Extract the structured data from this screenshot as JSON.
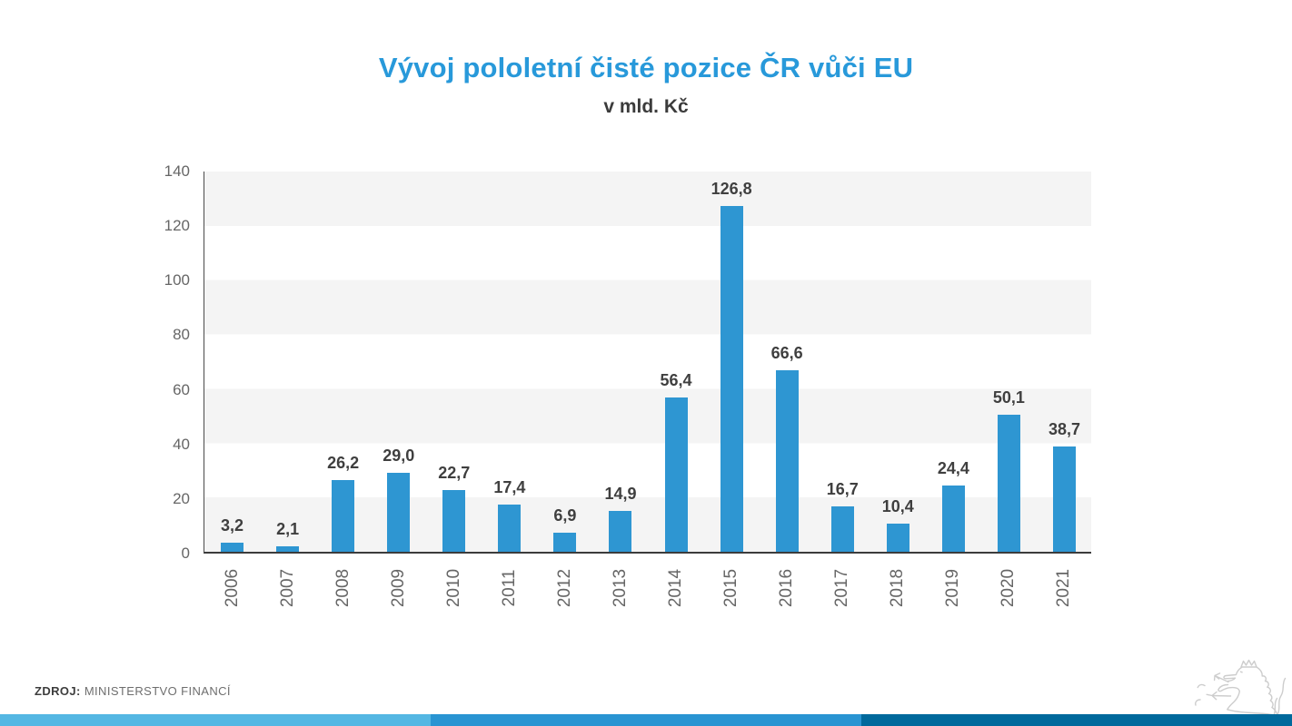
{
  "header": {
    "title": "Vývoj pololetní čisté pozice ČR vůči EU",
    "subtitle": "v mld. Kč"
  },
  "source": {
    "label": "ZDROJ:",
    "value": "MINISTERSTVO FINANCÍ"
  },
  "colors": {
    "title": "#2899da",
    "subtitle": "#3b3b3b",
    "bar": "#2e96d2",
    "band": "#f4f4f4",
    "axis": "#3c3c3c",
    "tick_text": "#666666",
    "value_label": "#3f3f3f",
    "footer_light_blue": "#54b7e3",
    "footer_mid_blue": "#2994d2",
    "footer_dark_blue": "#00699c",
    "lion_outline": "#cdcdcd"
  },
  "chart_data": {
    "type": "bar",
    "title": "Vývoj pololetní čisté pozice ČR vůči EU",
    "subtitle": "v mld. Kč",
    "xlabel": "",
    "ylabel": "v mld. Kč",
    "categories": [
      "2006",
      "2007",
      "2008",
      "2009",
      "2010",
      "2011",
      "2012",
      "2013",
      "2014",
      "2015",
      "2016",
      "2017",
      "2018",
      "2019",
      "2020",
      "2021"
    ],
    "values": [
      3.2,
      2.1,
      26.2,
      29.0,
      22.7,
      17.4,
      6.9,
      14.9,
      56.4,
      126.8,
      66.6,
      16.7,
      10.4,
      24.4,
      50.1,
      38.7
    ],
    "value_labels": [
      "3,2",
      "2,1",
      "26,2",
      "29,0",
      "22,7",
      "17,4",
      "6,9",
      "14,9",
      "56,4",
      "126,8",
      "66,6",
      "16,7",
      "10,4",
      "24,4",
      "50,1",
      "38,7"
    ],
    "ylim": [
      0,
      140
    ],
    "yticks": [
      0,
      20,
      40,
      60,
      80,
      100,
      120,
      140
    ],
    "grid": "alternating horizontal gray bands every 20 units",
    "legend": "none",
    "bar_color": "#2e96d2"
  }
}
